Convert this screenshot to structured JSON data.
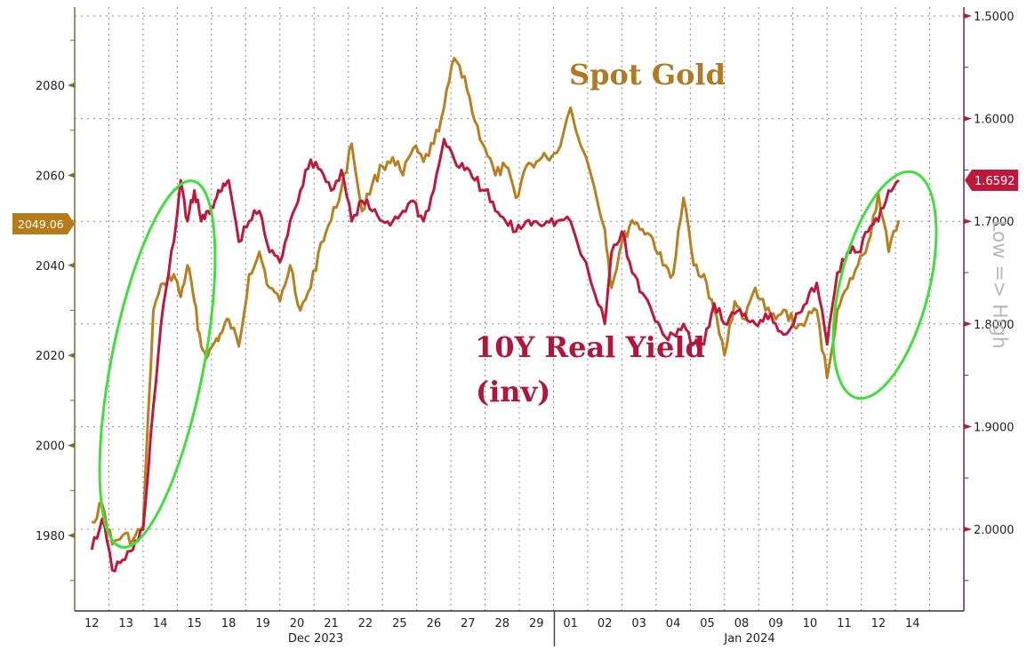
{
  "chart_data": {
    "type": "line",
    "title": "",
    "xlabel": "",
    "ylabel_left": "Spot Gold",
    "ylabel_right": "Low => High",
    "x_ticks": [
      "12",
      "13",
      "14",
      "15",
      "18",
      "19",
      "20",
      "21",
      "22",
      "25",
      "26",
      "27",
      "28",
      "29",
      "01",
      "02",
      "03",
      "04",
      "05",
      "08",
      "09",
      "10",
      "11",
      "12",
      "14"
    ],
    "month_labels": [
      "Dec 2023",
      "Jan 2024"
    ],
    "left_axis": {
      "ticks": [
        1980,
        2000,
        2020,
        2040,
        2060,
        2080
      ],
      "range": [
        1966,
        2098
      ]
    },
    "right_axis": {
      "ticks": [
        "1.5000",
        "1.6000",
        "1.7000",
        "1.8000",
        "1.9000",
        "2.0000"
      ],
      "range": [
        1.49,
        2.08
      ],
      "inverted": true
    },
    "series": [
      {
        "name": "Spot Gold",
        "axis": "left",
        "color": "#b8801e",
        "last_value": "2049.06",
        "x_index": [
          0,
          0.3,
          0.6,
          0.9,
          1.2,
          1.5,
          1.8,
          2.1,
          2.4,
          2.6,
          2.8,
          3.0,
          3.2,
          3.4,
          3.6,
          3.8,
          4.0,
          4.3,
          4.6,
          4.9,
          5.2,
          5.5,
          5.8,
          6.1,
          6.4,
          6.7,
          7.0,
          7.3,
          7.6,
          7.9,
          8.2,
          8.5,
          8.8,
          9.1,
          9.4,
          9.7,
          10.0,
          10.3,
          10.6,
          10.9,
          11.2,
          11.5,
          11.8,
          12.1,
          12.4,
          12.7,
          13.0,
          13.3,
          13.6,
          14.0,
          14.6,
          15.0,
          15.2,
          15.5,
          15.8,
          16.1,
          16.4,
          16.7,
          17.0,
          17.3,
          17.6,
          17.9,
          18.2,
          18.5,
          18.8,
          19.1,
          19.4,
          19.7,
          20.0,
          20.3,
          20.6,
          20.9,
          21.2,
          21.5,
          21.8,
          22.1,
          22.4,
          22.7,
          23.0,
          23.3,
          23.6
        ],
        "values": [
          1983,
          1987,
          1978,
          1980,
          1979,
          1982,
          2030,
          2036,
          2038,
          2033,
          2040,
          2032,
          2022,
          2020,
          2023,
          2025,
          2028,
          2022,
          2038,
          2043,
          2035,
          2032,
          2040,
          2030,
          2035,
          2045,
          2050,
          2057,
          2067,
          2052,
          2058,
          2062,
          2064,
          2060,
          2066,
          2063,
          2067,
          2075,
          2086,
          2082,
          2072,
          2066,
          2060,
          2062,
          2055,
          2062,
          2063,
          2064,
          2065,
          2075,
          2060,
          2048,
          2035,
          2045,
          2050,
          2048,
          2046,
          2040,
          2038,
          2055,
          2040,
          2038,
          2030,
          2020,
          2032,
          2028,
          2035,
          2030,
          2028,
          2030,
          2026,
          2028,
          2030,
          2015,
          2030,
          2035,
          2040,
          2045,
          2056,
          2043,
          2050
        ]
      },
      {
        "name": "10Y Real Yield (inv)",
        "axis": "right",
        "color": "#c0183c",
        "last_value": "1.6592",
        "x_index": [
          0,
          0.3,
          0.6,
          0.9,
          1.2,
          1.5,
          1.8,
          2.1,
          2.4,
          2.6,
          2.8,
          3.0,
          3.2,
          3.4,
          3.6,
          3.8,
          4.0,
          4.3,
          4.6,
          4.9,
          5.2,
          5.5,
          5.8,
          6.1,
          6.4,
          6.7,
          7.0,
          7.3,
          7.6,
          7.9,
          8.2,
          8.5,
          8.8,
          9.1,
          9.4,
          9.7,
          10.0,
          10.3,
          10.6,
          10.9,
          11.2,
          11.5,
          11.8,
          12.1,
          12.4,
          12.7,
          13.0,
          13.3,
          13.6,
          14.0,
          14.6,
          15.0,
          15.2,
          15.5,
          15.8,
          16.1,
          16.4,
          16.7,
          17.0,
          17.3,
          17.6,
          17.9,
          18.2,
          18.5,
          18.8,
          19.1,
          19.4,
          19.7,
          20.0,
          20.3,
          20.6,
          20.9,
          21.2,
          21.5,
          21.8,
          22.1,
          22.4,
          22.7,
          23.0,
          23.3,
          23.6
        ],
        "values": [
          2.02,
          1.99,
          2.04,
          2.03,
          2.02,
          2.0,
          1.88,
          1.78,
          1.72,
          1.66,
          1.7,
          1.67,
          1.7,
          1.69,
          1.68,
          1.67,
          1.66,
          1.72,
          1.7,
          1.69,
          1.73,
          1.74,
          1.7,
          1.67,
          1.64,
          1.65,
          1.67,
          1.65,
          1.7,
          1.68,
          1.69,
          1.7,
          1.7,
          1.69,
          1.68,
          1.7,
          1.67,
          1.62,
          1.64,
          1.65,
          1.66,
          1.67,
          1.69,
          1.7,
          1.71,
          1.7,
          1.7,
          1.7,
          1.7,
          1.7,
          1.76,
          1.8,
          1.73,
          1.71,
          1.75,
          1.77,
          1.79,
          1.81,
          1.81,
          1.8,
          1.82,
          1.82,
          1.78,
          1.8,
          1.79,
          1.79,
          1.8,
          1.79,
          1.8,
          1.81,
          1.79,
          1.78,
          1.76,
          1.82,
          1.75,
          1.73,
          1.73,
          1.71,
          1.7,
          1.67,
          1.66
        ]
      }
    ],
    "annotations": [
      {
        "text": "Spot Gold",
        "color": "#b07a22"
      },
      {
        "text": "10Y Real Yield",
        "color": "#b0163c"
      },
      {
        "text": "(inv)",
        "color": "#b0163c"
      },
      {
        "text": "Low => High",
        "color": "#b8b8b8"
      }
    ],
    "highlight_ellipses": 2,
    "grid": true,
    "legend_position": "none"
  },
  "labels": {
    "spot_gold": "Spot Gold",
    "real_yield_line1": "10Y Real Yield",
    "real_yield_line2": "(inv)",
    "axis_note": "Low => High",
    "gold_last": "2049.06",
    "yield_last": "1.6592",
    "month_dec": "Dec 2023",
    "month_jan": "Jan 2024"
  }
}
